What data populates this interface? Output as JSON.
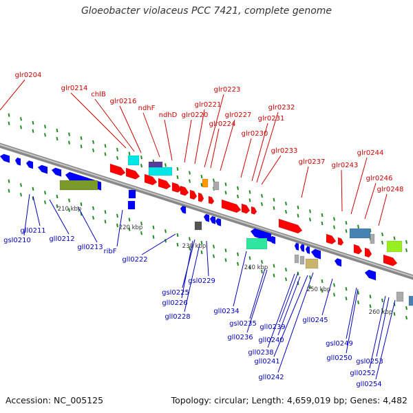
{
  "title": "Gloeobacter violaceus PCC 7421, complete genome",
  "footer": {
    "accession": "Accession: NC_005125",
    "topology": "Topology: circular; Length: 4,659,019 bp; Genes: 4,482"
  },
  "colors": {
    "top_label": "#cc0000",
    "bottom_label": "#0000bb",
    "backbone": "#999999",
    "tick": "#228b22",
    "red_gene": "#ff0000",
    "blue_gene": "#0000ff",
    "cyan_gene": "#00e5e5",
    "purple_gene": "#5b3b9a",
    "olive_gene": "#7a9a2a",
    "teal_gene": "#2ee6a0",
    "steelblue_gene": "#4682b4",
    "lime_gene": "#99ee22",
    "khaki_gene": "#c8b46a",
    "orange_gene": "#ff9900",
    "gray_gene": "#aaaaaa"
  },
  "scale_labels": [
    "210 kbp",
    "220 kbp",
    "230 kbp",
    "240 kbp",
    "250 kbp",
    "260 kbp"
  ],
  "top_genes": [
    "glr0204",
    "glr0214",
    "chlB",
    "glr0216",
    "ndhF",
    "ndhD",
    "glr0220",
    "glr0221",
    "glr0223",
    "glr0224",
    "glr0227",
    "glr0230",
    "glr0231",
    "glr0232",
    "glr0233",
    "glr0237",
    "glr0243",
    "glr0244",
    "glr0246",
    "glr0248"
  ],
  "bottom_genes": [
    "gsl0210",
    "gll0211",
    "gll0212",
    "gll0213",
    "ribF",
    "gll0222",
    "gsl0225",
    "gll0226",
    "gll0228",
    "gsl0229",
    "gll0234",
    "gsl0235",
    "gll0236",
    "gll0238",
    "gll0239",
    "gll0240",
    "gll0241",
    "gll0242",
    "gll0245",
    "gsl0249",
    "gll0250",
    "gll0252",
    "gsl0253",
    "gll0254"
  ]
}
